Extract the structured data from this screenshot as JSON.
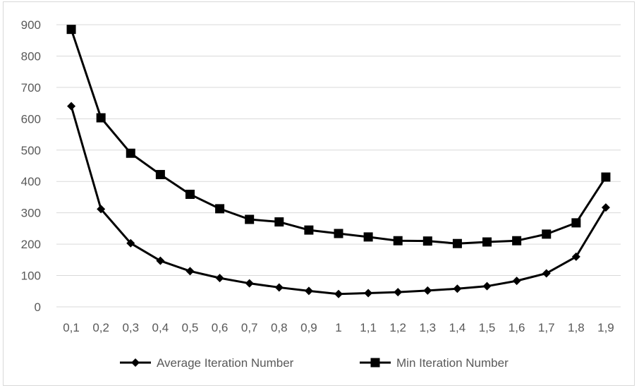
{
  "chart_data": {
    "type": "line",
    "categories": [
      "0,1",
      "0,2",
      "0,3",
      "0,4",
      "0,5",
      "0,6",
      "0,7",
      "0,8",
      "0,9",
      "1",
      "1,1",
      "1,2",
      "1,3",
      "1,4",
      "1,5",
      "1,6",
      "1,7",
      "1,8",
      "1,9"
    ],
    "series": [
      {
        "name": "Average Iteration Number",
        "marker": "diamond",
        "color": "#000000",
        "values": [
          640,
          312,
          203,
          147,
          114,
          92,
          75,
          62,
          51,
          41,
          44,
          47,
          52,
          58,
          66,
          83,
          107,
          160,
          317
        ]
      },
      {
        "name": "Min Iteration Number",
        "marker": "square",
        "color": "#000000",
        "values": [
          885,
          603,
          490,
          422,
          359,
          313,
          279,
          271,
          245,
          234,
          223,
          211,
          210,
          202,
          207,
          211,
          232,
          268,
          414
        ]
      }
    ],
    "yticks": [
      "0",
      "100",
      "200",
      "300",
      "400",
      "500",
      "600",
      "700",
      "800",
      "900"
    ],
    "ylim": [
      0,
      900
    ],
    "grid": true,
    "legend_position": "bottom"
  }
}
